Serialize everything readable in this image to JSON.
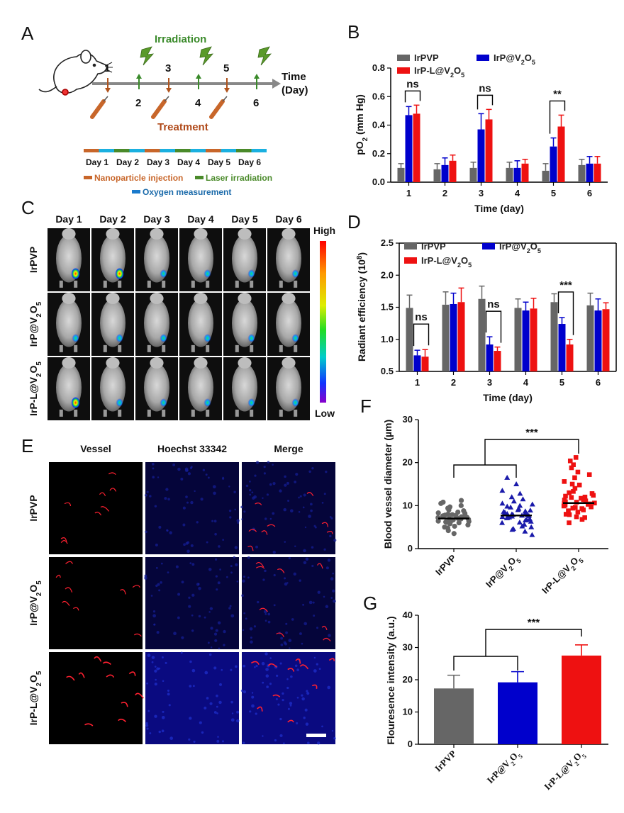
{
  "colors": {
    "irpvp": "#666666",
    "irpv2o5": "#0000cc",
    "irpl": "#ee1111",
    "orange": "#c8662a",
    "green": "#4a8a2a",
    "blue": "#1a7acc"
  },
  "panels": {
    "A": "A",
    "B": "B",
    "C": "C",
    "D": "D",
    "E": "E",
    "F": "F",
    "G": "G"
  },
  "scheme": {
    "irradiation": "Irradiation",
    "treatment": "Treatment",
    "time_label_1": "Time",
    "time_label_2": "(Day)",
    "top_numbers": [
      "1",
      "3",
      "5"
    ],
    "bottom_numbers": [
      "2",
      "4",
      "6"
    ],
    "days": [
      "Day 1",
      "Day 2",
      "Day 3",
      "Day 4",
      "Day 5",
      "Day 6"
    ],
    "legend": {
      "injection": "Nanoparticle injection",
      "laser": "Laser irradiation",
      "oxygen": "Oxygen measurement"
    }
  },
  "imaging": {
    "days": [
      "Day 1",
      "Day 2",
      "Day 3",
      "Day 4",
      "Day 5",
      "Day 6"
    ],
    "rows": [
      "IrPVP",
      "IrP@V2O5",
      "IrP-L@V2O5"
    ],
    "scale_high": "High",
    "scale_low": "Low"
  },
  "microscopy": {
    "columns": [
      "Vessel",
      "Hoechst 33342",
      "Merge"
    ],
    "rows": [
      "IrPVP",
      "IrP@V2O5",
      "IrP-L@V2O5"
    ]
  },
  "chart_data": [
    {
      "panel": "B",
      "type": "bar",
      "categories": [
        "1",
        "2",
        "3",
        "4",
        "5",
        "6"
      ],
      "xlabel": "Time (day)",
      "ylabel": "pO2 (mm Hg)",
      "ylim": [
        0,
        0.8
      ],
      "yticks": [
        "0.0",
        "0.2",
        "0.4",
        "0.6",
        "0.8"
      ],
      "series": [
        {
          "name": "IrPVP",
          "values": [
            0.1,
            0.09,
            0.1,
            0.1,
            0.08,
            0.12
          ],
          "err": [
            0.03,
            0.04,
            0.04,
            0.04,
            0.05,
            0.04
          ]
        },
        {
          "name": "IrP@V2O5",
          "values": [
            0.47,
            0.12,
            0.37,
            0.1,
            0.25,
            0.13
          ],
          "err": [
            0.06,
            0.05,
            0.11,
            0.05,
            0.06,
            0.05
          ]
        },
        {
          "name": "IrP-L@V2O5",
          "values": [
            0.48,
            0.15,
            0.44,
            0.13,
            0.39,
            0.13
          ],
          "err": [
            0.06,
            0.04,
            0.07,
            0.03,
            0.08,
            0.05
          ]
        }
      ],
      "annotations": [
        {
          "cat": 0,
          "label": "ns"
        },
        {
          "cat": 2,
          "label": "ns"
        },
        {
          "cat": 4,
          "label": "**"
        }
      ]
    },
    {
      "panel": "D",
      "type": "bar",
      "categories": [
        "1",
        "2",
        "3",
        "4",
        "5",
        "6"
      ],
      "xlabel": "Time (day)",
      "ylabel": "Radiant efficiency (10^8)",
      "ylim": [
        0.5,
        2.5
      ],
      "yticks": [
        "0.5",
        "1.0",
        "1.5",
        "2.0",
        "2.5"
      ],
      "series": [
        {
          "name": "IrPVP",
          "values": [
            1.49,
            1.54,
            1.63,
            1.49,
            1.58,
            1.53
          ],
          "err": [
            0.2,
            0.2,
            0.2,
            0.14,
            0.13,
            0.19
          ]
        },
        {
          "name": "IrP@V2O5",
          "values": [
            0.75,
            1.55,
            0.92,
            1.45,
            1.24,
            1.45
          ],
          "err": [
            0.08,
            0.17,
            0.12,
            0.13,
            0.1,
            0.18
          ]
        },
        {
          "name": "IrP-L@V2O5",
          "values": [
            0.73,
            1.58,
            0.82,
            1.48,
            0.92,
            1.47
          ],
          "err": [
            0.11,
            0.22,
            0.06,
            0.16,
            0.08,
            0.1
          ]
        }
      ],
      "annotations": [
        {
          "cat": 0,
          "label": "ns"
        },
        {
          "cat": 2,
          "label": "ns"
        },
        {
          "cat": 4,
          "label": "***"
        }
      ]
    },
    {
      "panel": "F",
      "type": "scatter",
      "categories": [
        "IrPVP",
        "IrP@V2O5",
        "IrP-L@V2O5"
      ],
      "xlabel": "",
      "ylabel": "Blood vessel diameter (µm)",
      "ylim": [
        0,
        30
      ],
      "yticks": [
        "0",
        "10",
        "20",
        "30"
      ],
      "means": [
        7.0,
        7.7,
        10.6
      ],
      "points": [
        [
          4.2,
          5.0,
          5.5,
          5.8,
          6.0,
          6.2,
          6.3,
          6.5,
          6.6,
          6.7,
          6.8,
          6.9,
          7.0,
          7.0,
          7.1,
          7.2,
          7.3,
          7.4,
          7.5,
          7.6,
          7.8,
          8.0,
          8.2,
          8.5,
          8.8,
          9.0,
          9.4,
          10.0,
          10.5,
          11.2,
          3.5,
          5.2,
          6.1,
          7.7,
          8.3,
          9.7,
          4.8,
          6.4,
          7.9,
          10.8
        ],
        [
          4.0,
          4.6,
          5.2,
          5.6,
          6.0,
          6.3,
          6.6,
          6.9,
          7.1,
          7.3,
          7.5,
          7.6,
          7.7,
          7.8,
          7.9,
          8.0,
          8.2,
          8.4,
          8.7,
          9.0,
          9.3,
          9.6,
          10.0,
          10.5,
          11.0,
          12.0,
          13.5,
          15.0,
          16.5,
          3.2,
          5.0,
          6.1,
          7.2,
          8.1,
          8.9,
          9.8,
          11.5,
          12.8,
          4.4,
          6.7,
          7.4,
          8.6,
          10.3
        ],
        [
          6.0,
          6.8,
          7.4,
          8.0,
          8.5,
          9.0,
          9.3,
          9.6,
          9.9,
          10.1,
          10.3,
          10.5,
          10.6,
          10.7,
          10.9,
          11.1,
          11.4,
          11.7,
          12.0,
          12.4,
          12.8,
          13.3,
          14.0,
          14.8,
          15.6,
          16.5,
          17.2,
          18.8,
          19.5,
          20.4,
          21.2,
          7.2,
          8.8,
          9.7,
          10.4,
          11.3,
          12.2,
          13.0,
          15.0,
          17.8,
          7.9,
          9.4,
          10.8,
          11.9
        ]
      ],
      "annotations": [
        {
          "label": "***"
        }
      ]
    },
    {
      "panel": "G",
      "type": "bar",
      "categories": [
        "IrPVP",
        "IrP@V2O5",
        "IrP-L@V2O5"
      ],
      "xlabel": "",
      "ylabel": "Flouresence intensity (a.u.)",
      "ylim": [
        0,
        40
      ],
      "yticks": [
        "0",
        "10",
        "20",
        "30",
        "40"
      ],
      "values": [
        17.3,
        19.2,
        27.5
      ],
      "err": [
        4.1,
        3.3,
        3.3
      ],
      "annotations": [
        {
          "label": "***"
        }
      ]
    }
  ]
}
